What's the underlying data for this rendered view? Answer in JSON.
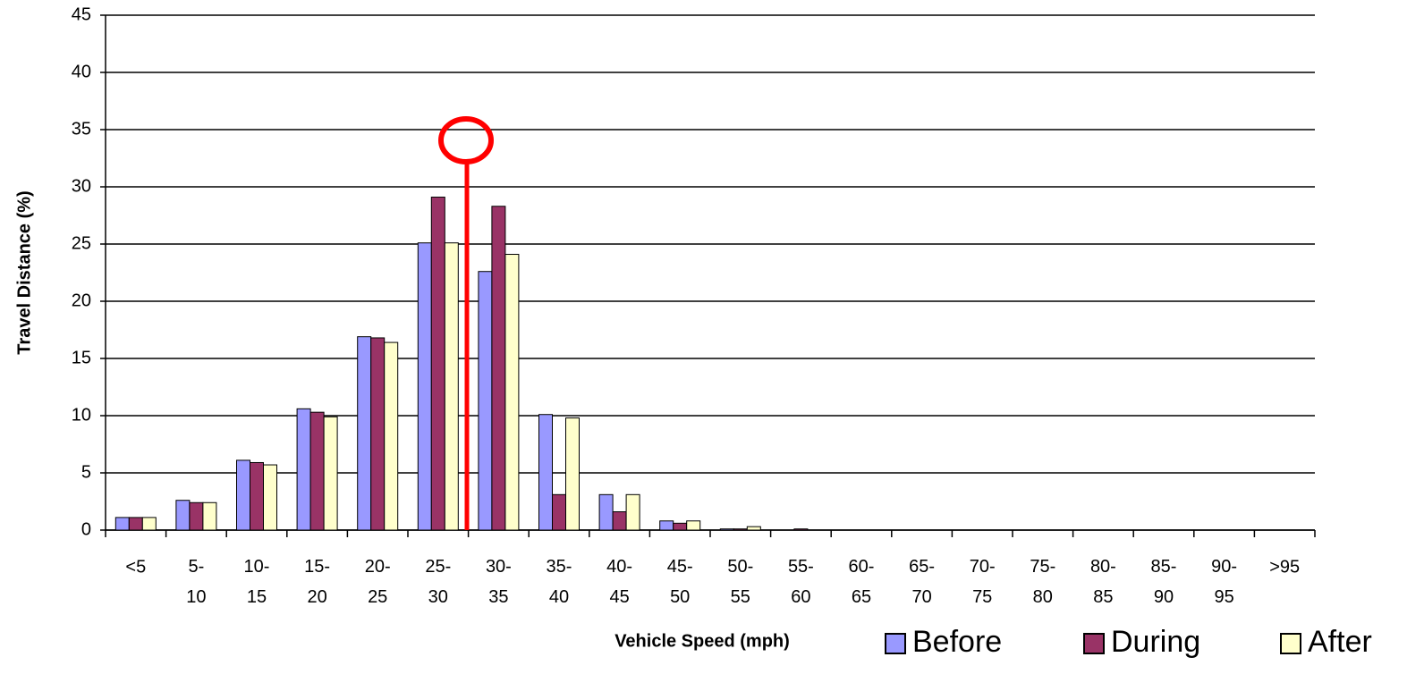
{
  "chart_data": {
    "type": "bar",
    "x_label": "Vehicle Speed (mph)",
    "y_label": "Travel Distance (%)",
    "categories": [
      "<5",
      "5-10",
      "10-15",
      "15-20",
      "20-25",
      "25-30",
      "30-35",
      "35-40",
      "40-45",
      "45-50",
      "50-55",
      "55-60",
      "60-65",
      "65-70",
      "70-75",
      "75-80",
      "80-85",
      "85-90",
      "90-95",
      ">95"
    ],
    "series": [
      {
        "name": "Before",
        "color": "#9999ff",
        "values": [
          1.1,
          2.6,
          6.1,
          10.6,
          16.9,
          25.1,
          22.6,
          10.1,
          3.1,
          0.8,
          0.1,
          0,
          0,
          0,
          0,
          0,
          0,
          0,
          0,
          0
        ]
      },
      {
        "name": "During",
        "color": "#993366",
        "values": [
          1.1,
          2.4,
          5.9,
          10.3,
          16.8,
          29.1,
          28.3,
          3.1,
          1.6,
          0.6,
          0.1,
          0.1,
          0,
          0,
          0,
          0,
          0,
          0,
          0,
          0
        ]
      },
      {
        "name": "After",
        "color": "#ffffcc",
        "values": [
          1.1,
          2.4,
          5.7,
          9.9,
          16.4,
          25.1,
          24.1,
          9.8,
          3.1,
          0.8,
          0.3,
          0,
          0,
          0,
          0,
          0,
          0,
          0,
          0,
          0
        ]
      }
    ],
    "ylim": [
      0,
      45
    ],
    "yticks": [
      0,
      5,
      10,
      15,
      20,
      25,
      30,
      35,
      40,
      45
    ],
    "grid": true
  }
}
